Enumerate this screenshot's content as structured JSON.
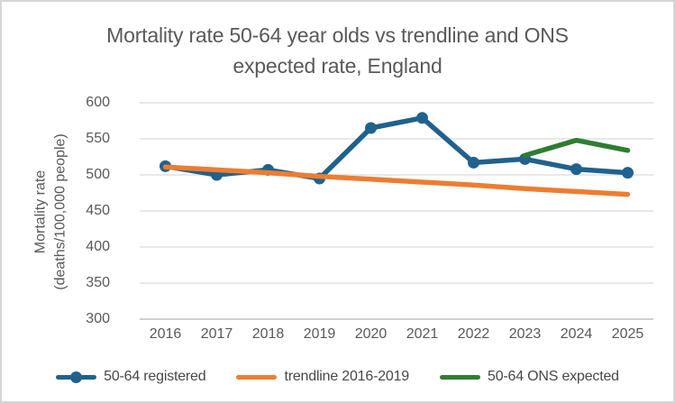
{
  "frame": {
    "background": "#ffffff",
    "border_color": "#d6d6d6"
  },
  "title": {
    "line1": "Mortality rate 50-64 year olds vs trendline and ONS",
    "line2": "expected rate, England",
    "color": "#595959"
  },
  "y_axis": {
    "title_line1": "Mortality rate",
    "title_line2": "(deaths/100,000 people)",
    "tick_labels": [
      "600",
      "550",
      "500",
      "450",
      "400",
      "350",
      "300"
    ],
    "color": "#595959"
  },
  "x_axis": {
    "labels": [
      "2016",
      "2017",
      "2018",
      "2019",
      "2020",
      "2021",
      "2022",
      "2023",
      "2024",
      "2025"
    ],
    "color": "#595959"
  },
  "colors": {
    "gridline": "#d9d9d9",
    "axis_line": "#bfbfbf",
    "registered_blue": "#20628c",
    "trendline_orange": "#ed7d31",
    "ons_green": "#2e7d32",
    "text_gray": "#595959",
    "legend_text": "#474747"
  },
  "chart_data": {
    "type": "line",
    "title": "Mortality rate 50-64 year olds vs trendline and ONS expected rate, England",
    "xlabel": "",
    "ylabel": "Mortality rate (deaths/100,000 people)",
    "ylim": [
      300,
      600
    ],
    "y_ticks": [
      600,
      550,
      500,
      450,
      400,
      350,
      300
    ],
    "grid": true,
    "legend_position": "bottom",
    "categories": [
      "2016",
      "2017",
      "2018",
      "2019",
      "2020",
      "2021",
      "2022",
      "2023",
      "2024",
      "2025"
    ],
    "series": [
      {
        "name": "50-64 registered",
        "color": "#20628c",
        "marker": "circle",
        "values": [
          512,
          500,
          507,
          495,
          565,
          579,
          517,
          522,
          508,
          503
        ]
      },
      {
        "name": "trendline 2016-2019",
        "color": "#ed7d31",
        "marker": "none",
        "values": [
          511,
          507,
          503,
          498,
          494,
          490,
          486,
          481,
          477,
          473
        ]
      },
      {
        "name": "50-64 ONS expected",
        "color": "#2e7d32",
        "marker": "none",
        "values": [
          null,
          null,
          null,
          null,
          null,
          null,
          null,
          527,
          548,
          534
        ]
      }
    ]
  },
  "legend": {
    "items": [
      {
        "label": "50-64 registered",
        "color": "#20628c",
        "has_marker": true
      },
      {
        "label": "trendline 2016-2019",
        "color": "#ed7d31",
        "has_marker": false
      },
      {
        "label": "50-64 ONS expected",
        "color": "#2e7d32",
        "has_marker": false
      }
    ]
  }
}
